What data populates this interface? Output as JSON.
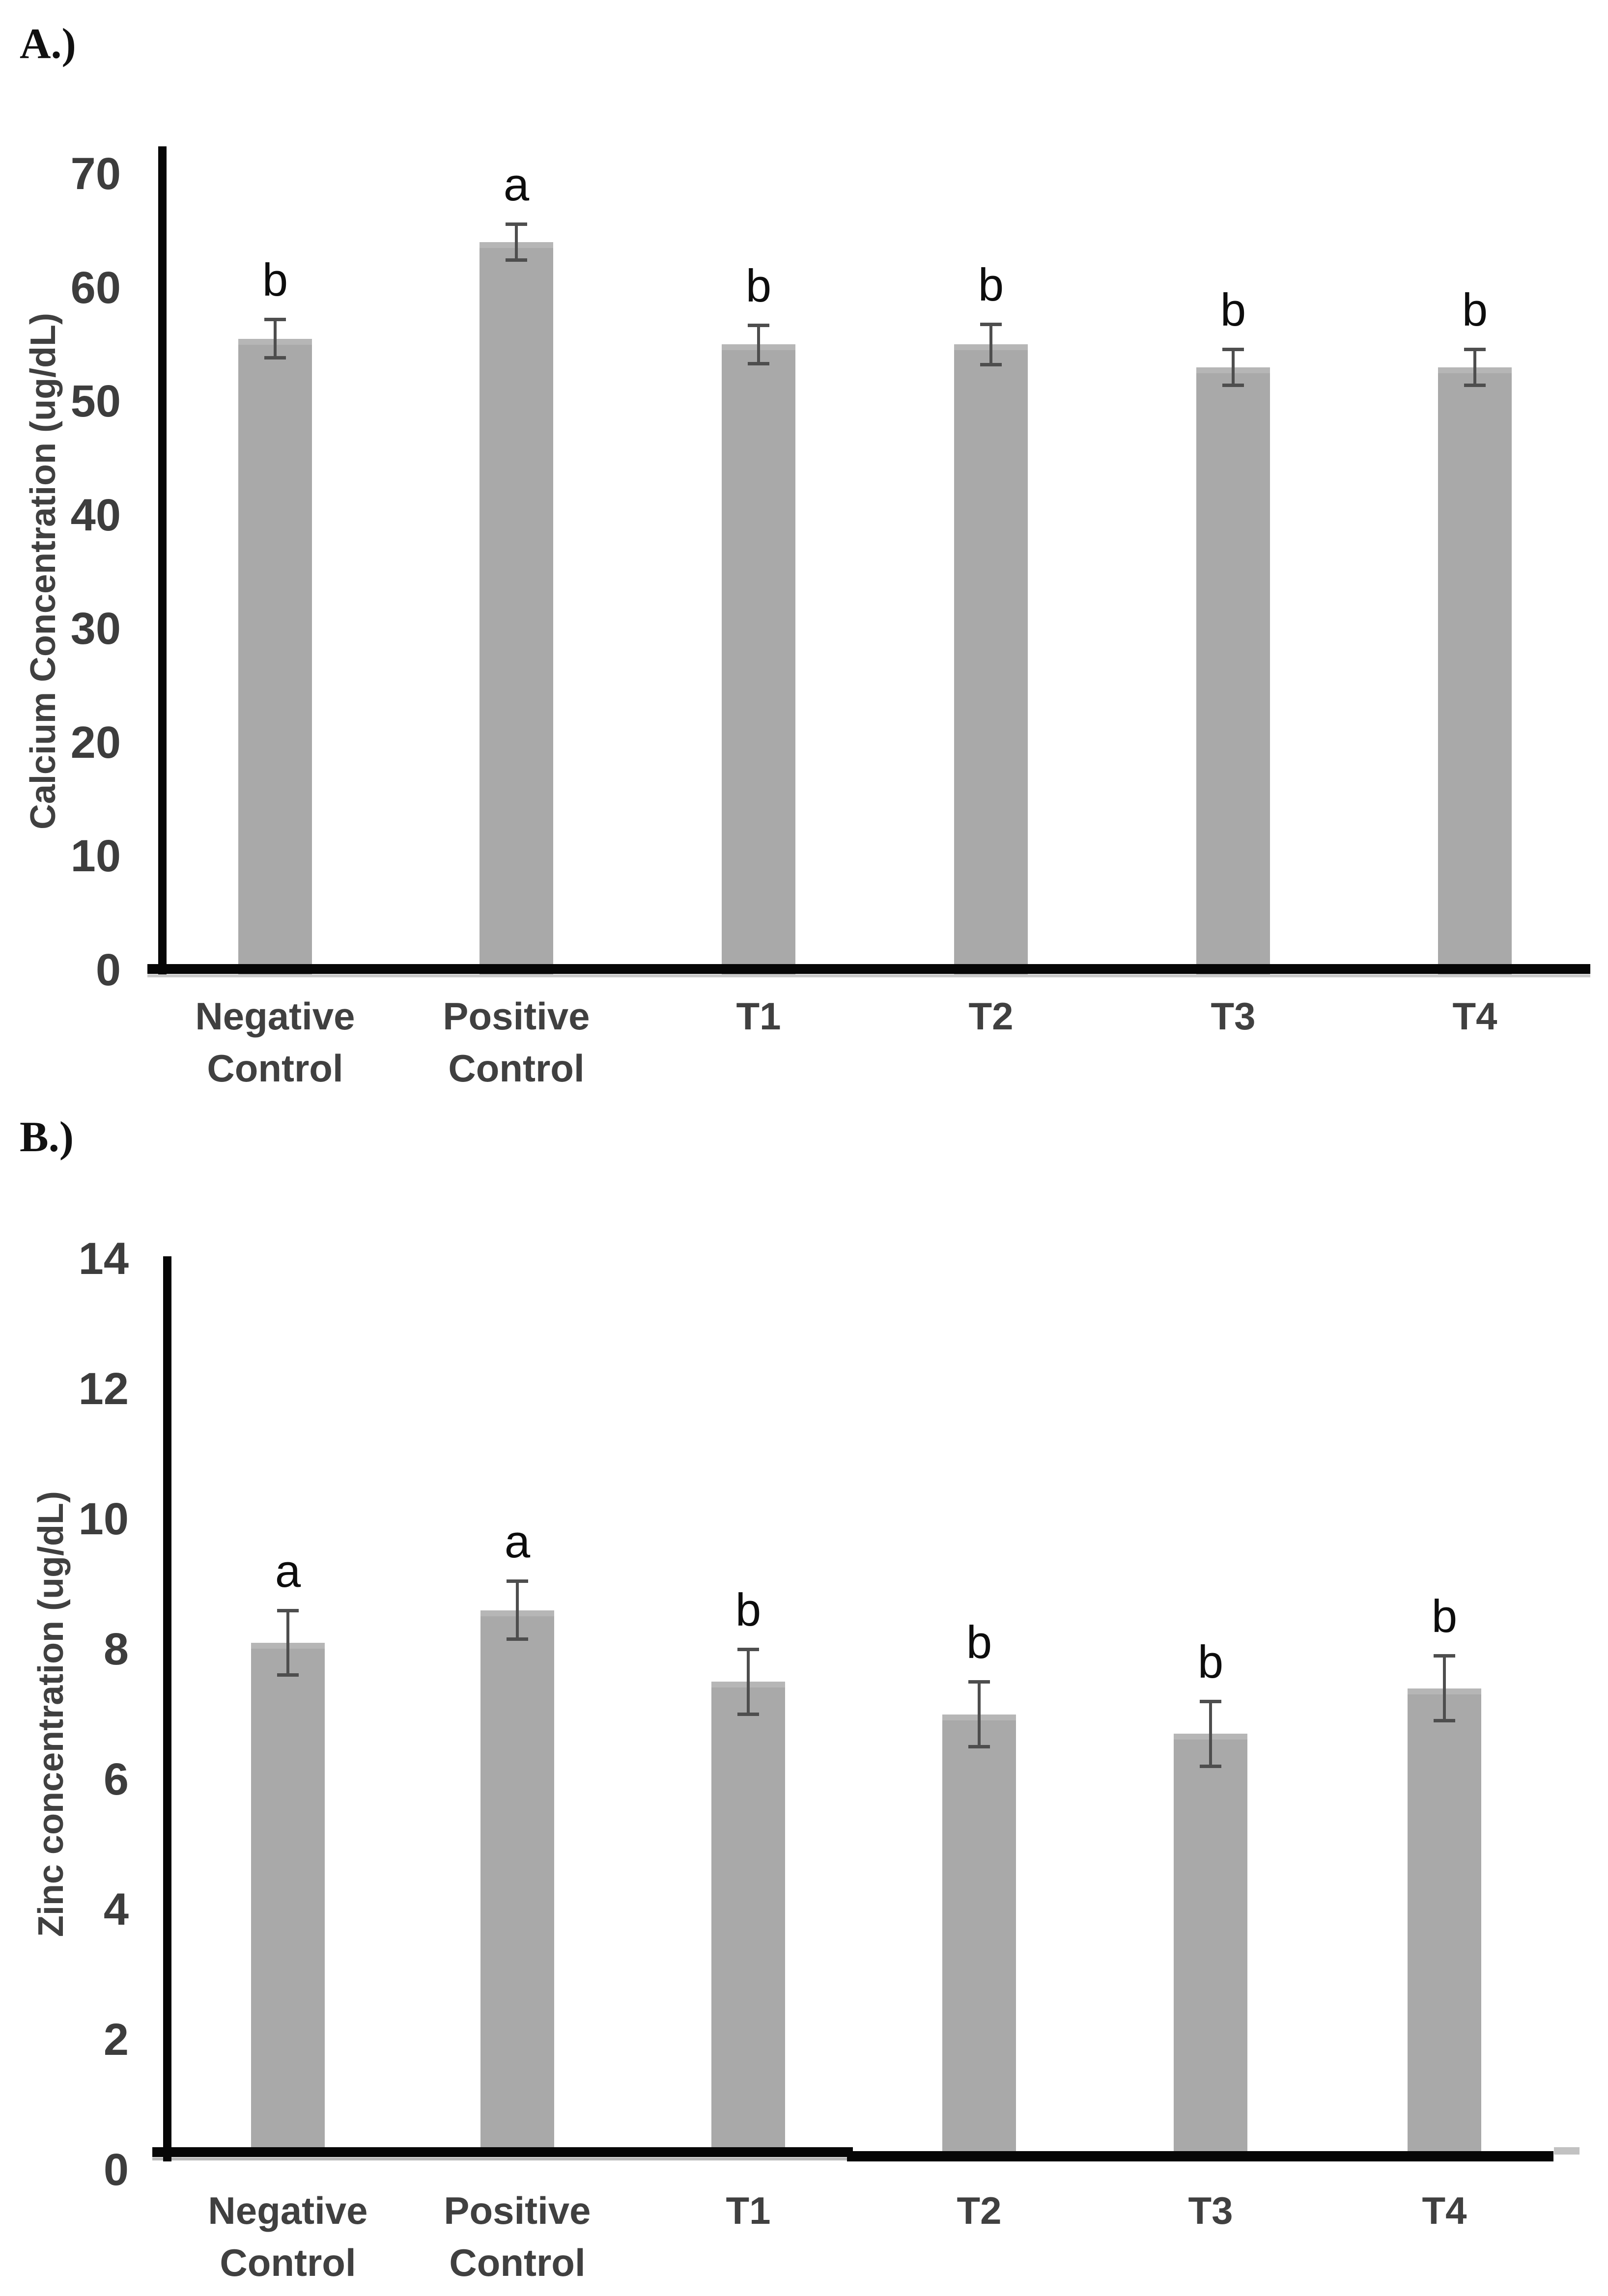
{
  "panels": [
    {
      "label": "A.)"
    },
    {
      "label": "B.)"
    }
  ],
  "chart_data": [
    {
      "type": "bar",
      "panel": "A",
      "title": "",
      "xlabel": "",
      "ylabel": "Calcium Concentration (ug/dL)",
      "categories": [
        [
          "Negative",
          "Control"
        ],
        [
          "Positive",
          "Control"
        ],
        [
          "T1"
        ],
        [
          "T2"
        ],
        [
          "T3"
        ],
        [
          "T4"
        ]
      ],
      "values": [
        55.5,
        64,
        55,
        55,
        53,
        53
      ],
      "errors": [
        1.7,
        1.6,
        1.7,
        1.8,
        1.6,
        1.6
      ],
      "sig_letters": [
        "b",
        "a",
        "b",
        "b",
        "b",
        "b"
      ],
      "ylim": [
        0,
        70
      ],
      "yticks": [
        0,
        10,
        20,
        30,
        40,
        50,
        60,
        70
      ],
      "grid": false,
      "legend": "none",
      "bar_color": "#a9a9a9",
      "bar_top_edge_color": "#b6b6b6",
      "error_color": "#4e4e4e",
      "axis_color": "#060606",
      "tick_color": "#3d3d3d",
      "label_color": "#404040"
    },
    {
      "type": "bar",
      "panel": "B",
      "title": "",
      "xlabel": "",
      "ylabel": "Zinc concentration (ug/dL)",
      "categories": [
        [
          "Negative",
          "Control"
        ],
        [
          "Positive",
          "Control"
        ],
        [
          "T1"
        ],
        [
          "T2"
        ],
        [
          "T3"
        ],
        [
          "T4"
        ]
      ],
      "values": [
        8.1,
        8.6,
        7.5,
        7.0,
        6.7,
        7.4
      ],
      "errors": [
        0.5,
        0.45,
        0.5,
        0.5,
        0.5,
        0.5
      ],
      "sig_letters": [
        "a",
        "a",
        "b",
        "b",
        "b",
        "b"
      ],
      "ylim": [
        0,
        14
      ],
      "yticks": [
        0,
        2,
        4,
        6,
        8,
        10,
        12,
        14
      ],
      "grid": false,
      "legend": "none",
      "bar_color": "#a9a9a9",
      "bar_top_edge_color": "#b6b6b6",
      "error_color": "#4e4e4e",
      "axis_color": "#060606",
      "tick_color": "#3d3d3d",
      "label_color": "#404040"
    }
  ]
}
